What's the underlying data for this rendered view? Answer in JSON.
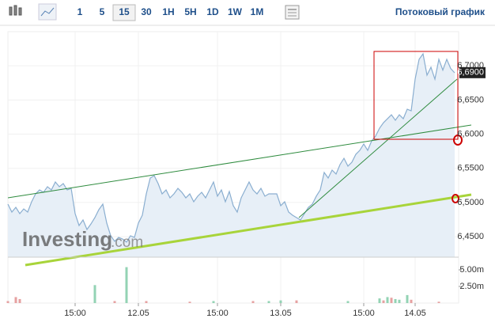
{
  "toolbar": {
    "intervals": [
      "1",
      "5",
      "15",
      "30",
      "1H",
      "5H",
      "1D",
      "1W",
      "1M"
    ],
    "active_interval": "15",
    "stream_link": "Потоковый график"
  },
  "watermark": {
    "brand": "Investing",
    "suffix": ".com"
  },
  "chart_data": {
    "type": "area",
    "line_color": "#8aaed0",
    "fill_color": "#e7eff7",
    "values": [
      6.4976,
      6.486,
      6.4929,
      6.4837,
      6.4906,
      6.486,
      6.5011,
      6.5126,
      6.5184,
      6.5149,
      6.5231,
      6.5184,
      6.53,
      6.5231,
      6.5277,
      6.5184,
      6.5207,
      6.4837,
      6.4663,
      6.4744,
      6.4605,
      6.4686,
      6.4779,
      6.4895,
      6.4976,
      6.4698,
      6.4513,
      6.4432,
      6.4489,
      6.4466,
      6.442,
      6.4513,
      6.4489,
      6.4698,
      6.4814,
      6.5126,
      6.5358,
      6.5393,
      6.5277,
      6.5126,
      6.5184,
      6.5068,
      6.5126,
      6.5207,
      6.5149,
      6.5068,
      6.5126,
      6.5011,
      6.5092,
      6.5149,
      6.5068,
      6.5184,
      6.53,
      6.5092,
      6.5184,
      6.5011,
      6.5161,
      6.4953,
      6.486,
      6.5068,
      6.5184,
      6.53,
      6.5184,
      6.5126,
      6.5207,
      6.5092,
      6.5126,
      6.5126,
      6.5126,
      6.4953,
      6.5011,
      6.486,
      6.4814,
      6.4779,
      6.4744,
      6.4837,
      6.4929,
      6.4976,
      6.5092,
      6.5184,
      6.5439,
      6.5358,
      6.5474,
      6.5416,
      6.5555,
      6.5647,
      6.5532,
      6.5589,
      6.5705,
      6.5763,
      6.5856,
      6.5763,
      6.5902,
      6.5972,
      6.6087,
      6.6168,
      6.6226,
      6.6284,
      6.6203,
      6.6284,
      6.6226,
      6.6365,
      6.6342,
      6.6805,
      6.7095,
      6.7176,
      6.6863,
      6.6979,
      6.6805,
      6.7095,
      6.6937,
      6.7095,
      6.696,
      6.6898
    ],
    "xlim": [
      0,
      113
    ],
    "xticks": [
      {
        "value": 17,
        "label": "15:00"
      },
      {
        "value": 33,
        "label": "12.05"
      },
      {
        "value": 53,
        "label": "15:00"
      },
      {
        "value": 69,
        "label": "13.05"
      },
      {
        "value": 90,
        "label": "15:00"
      },
      {
        "value": 103,
        "label": "14.05"
      }
    ],
    "ylim": [
      6.42,
      6.75
    ],
    "yticks": [
      {
        "value": 6.45,
        "label": "6,4500"
      },
      {
        "value": 6.5,
        "label": "6,5000"
      },
      {
        "value": 6.55,
        "label": "6,5500"
      },
      {
        "value": 6.6,
        "label": "6,6000"
      },
      {
        "value": 6.65,
        "label": "6,6500"
      },
      {
        "value": 6.7,
        "label": "6,7000"
      }
    ],
    "last_price": {
      "value": 6.69,
      "label": "6,6900"
    },
    "grid": true,
    "y2lim": [
      0,
      6900000
    ],
    "y2ticks": [
      {
        "value": 2500000,
        "label": "2.50m"
      },
      {
        "value": 5000000,
        "label": "5.00m"
      }
    ],
    "volume": [
      {
        "name": "up",
        "color": "#93d3b4",
        "x": [
          22,
          30,
          52,
          66,
          69,
          86,
          94,
          96,
          98,
          99,
          101
        ],
        "values": [
          2700000,
          5400000,
          300000,
          300000,
          400000,
          300000,
          700000,
          900000,
          600000,
          500000,
          1200000
        ]
      },
      {
        "name": "down",
        "color": "#e6a1a1",
        "x": [
          0,
          2,
          3,
          27,
          35,
          46,
          62,
          73,
          95,
          97,
          102,
          109
        ],
        "values": [
          300000,
          900000,
          600000,
          300000,
          300000,
          200000,
          300000,
          400000,
          400000,
          800000,
          500000,
          200000
        ]
      }
    ]
  }
}
